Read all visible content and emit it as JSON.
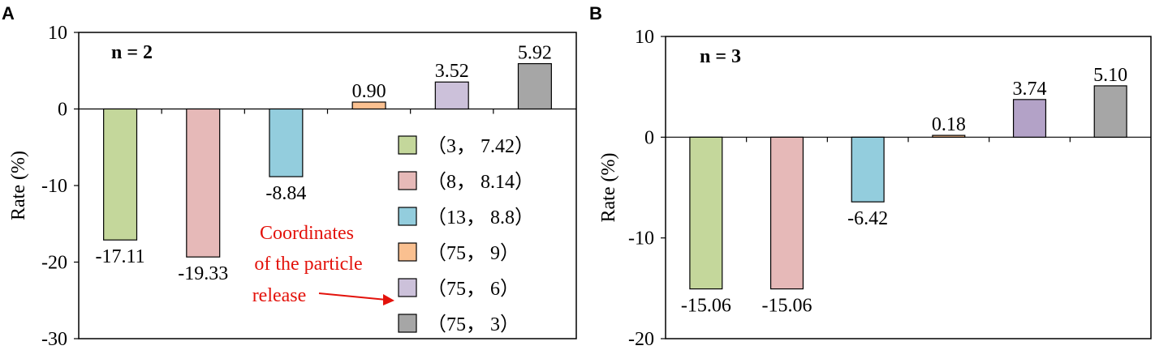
{
  "chart_data": [
    {
      "type": "bar",
      "panel": "A",
      "title": "n = 2",
      "ylabel": "Rate (%)",
      "ylim": [
        -30,
        10
      ],
      "yticks": [
        10,
        0,
        -10,
        -20,
        -30
      ],
      "series": [
        {
          "name": "（3， 7.42）",
          "value": -17.11,
          "label": "-17.11",
          "color": "#c4d79b"
        },
        {
          "name": "（8， 8.14）",
          "value": -19.33,
          "label": "-19.33",
          "color": "#e6b9b8"
        },
        {
          "name": "（13， 8.8）",
          "value": -8.84,
          "label": "-8.84",
          "color": "#93cddd"
        },
        {
          "name": "（75， 9）",
          "value": 0.9,
          "label": "0.90",
          "color": "#fac090"
        },
        {
          "name": "（75， 6）",
          "value": 3.52,
          "label": "3.52",
          "color": "#ccc1da"
        },
        {
          "name": "（75， 3）",
          "value": 5.92,
          "label": "5.92",
          "color": "#a6a6a6"
        }
      ],
      "annotation": [
        "Coordinates",
        "of the particle",
        "release"
      ]
    },
    {
      "type": "bar",
      "panel": "B",
      "title": "n = 3",
      "ylabel": "Rate (%)",
      "ylim": [
        -20,
        10
      ],
      "yticks": [
        10,
        0,
        -10,
        -20
      ],
      "series": [
        {
          "name": "（3， 7.42）",
          "value": -15.06,
          "label": "-15.06",
          "color": "#c4d79b"
        },
        {
          "name": "（8， 8.14）",
          "value": -15.06,
          "label": "-15.06",
          "color": "#e6b9b8"
        },
        {
          "name": "（13， 8.8）",
          "value": -6.42,
          "label": "-6.42",
          "color": "#93cddd"
        },
        {
          "name": "（75， 9）",
          "value": 0.18,
          "label": "0.18",
          "color": "#fac090"
        },
        {
          "name": "（75， 6）",
          "value": 3.74,
          "label": "3.74",
          "color": "#b3a2c7"
        },
        {
          "name": "（75， 3）",
          "value": 5.1,
          "label": "5.10",
          "color": "#a6a6a6"
        }
      ]
    }
  ]
}
